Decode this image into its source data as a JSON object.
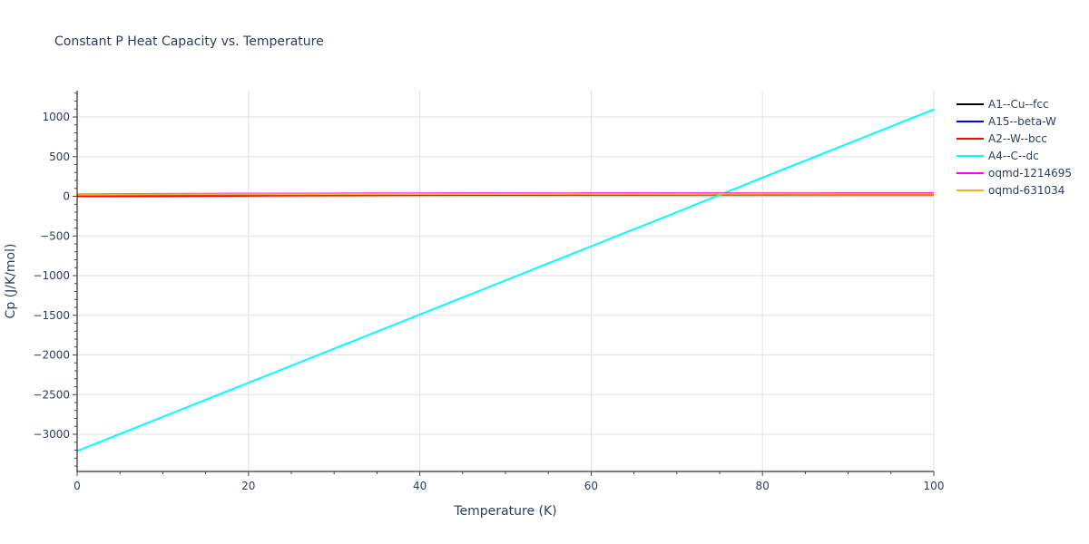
{
  "chart_data": {
    "type": "line",
    "title": "Constant P Heat Capacity vs. Temperature",
    "xlabel": "Temperature (K)",
    "ylabel": "Cp (J/K/mol)",
    "xlim": [
      0,
      100
    ],
    "ylim": [
      -3470,
      1330
    ],
    "grid": true,
    "legend_position": "right",
    "x_ticks": [
      0,
      20,
      40,
      60,
      80,
      100
    ],
    "x_tick_labels": [
      "0",
      "20",
      "40",
      "60",
      "80",
      "100"
    ],
    "y_ticks": [
      1000,
      500,
      0,
      -500,
      -1000,
      -1500,
      -2000,
      -2500,
      -3000
    ],
    "y_tick_labels": [
      "1000",
      "500",
      "0",
      "−500",
      "−1000",
      "−1500",
      "−2000",
      "−2500",
      "−3000"
    ],
    "x": [
      0,
      10,
      20,
      30,
      40,
      50,
      60,
      70,
      80,
      90,
      100
    ],
    "series": [
      {
        "name": "A1--Cu--fcc",
        "color": "#000000",
        "values": [
          0,
          3,
          10,
          15,
          18,
          20,
          21,
          22,
          23,
          23.5,
          24
        ]
      },
      {
        "name": "A15--beta-W",
        "color": "#0000ff",
        "values": [
          0,
          4,
          12,
          17,
          20,
          22,
          23,
          23.5,
          24,
          24.3,
          24.5
        ]
      },
      {
        "name": "A2--W--bcc",
        "color": "#ff0000",
        "values": [
          0,
          2,
          8,
          13,
          16,
          18,
          20,
          21,
          22,
          22.5,
          23
        ]
      },
      {
        "name": "A4--C--dc",
        "color": "#00ffff",
        "values": [
          -3210,
          -2780,
          -2350,
          -1920,
          -1490,
          -1060,
          -630,
          -200,
          235,
          665,
          1095
        ]
      },
      {
        "name": "oqmd-1214695",
        "color": "#ff00ff",
        "values": [
          25,
          30,
          33,
          35,
          36,
          37,
          38,
          38.5,
          39,
          39.5,
          40
        ]
      },
      {
        "name": "oqmd-631034",
        "color": "#f0b418",
        "values": [
          20,
          24,
          26,
          27,
          28,
          29,
          30,
          30.5,
          31,
          31.5,
          32
        ]
      }
    ]
  }
}
